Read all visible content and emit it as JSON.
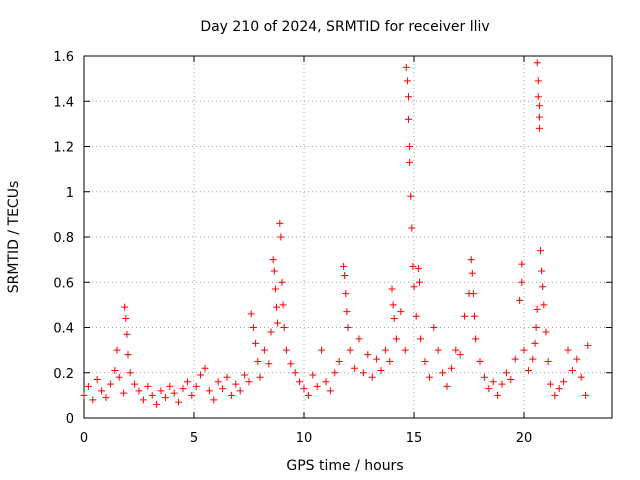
{
  "chart_data": {
    "type": "scatter",
    "title": "Day 210 of 2024, SRMTID for receiver lliv",
    "xlabel": "GPS time / hours",
    "ylabel": "SRMTID / TECUs",
    "xlim": [
      0,
      24
    ],
    "ylim": [
      0,
      1.6
    ],
    "xticks": [
      0,
      5,
      10,
      15,
      20
    ],
    "yticks": [
      0,
      0.2,
      0.4,
      0.6,
      0.8,
      1,
      1.2,
      1.4,
      1.6
    ],
    "xtick_labels": [
      "0",
      "5",
      "10",
      "15",
      "20"
    ],
    "ytick_labels": [
      "0",
      "0.2",
      "0.4",
      "0.6",
      "0.8",
      "1",
      "1.2",
      "1.4",
      "1.6"
    ],
    "grid": true,
    "marker": "+",
    "color": "#ff0000",
    "series": [
      {
        "name": "SRMTID",
        "points": [
          [
            0.0,
            0.1
          ],
          [
            0.2,
            0.14
          ],
          [
            0.4,
            0.08
          ],
          [
            0.6,
            0.17
          ],
          [
            0.8,
            0.12
          ],
          [
            1.0,
            0.09
          ],
          [
            1.2,
            0.15
          ],
          [
            1.4,
            0.21
          ],
          [
            1.5,
            0.3
          ],
          [
            1.6,
            0.18
          ],
          [
            1.8,
            0.11
          ],
          [
            1.85,
            0.49
          ],
          [
            1.9,
            0.44
          ],
          [
            1.95,
            0.37
          ],
          [
            2.0,
            0.28
          ],
          [
            2.1,
            0.2
          ],
          [
            2.3,
            0.15
          ],
          [
            2.5,
            0.12
          ],
          [
            2.7,
            0.08
          ],
          [
            2.9,
            0.14
          ],
          [
            3.1,
            0.1
          ],
          [
            3.3,
            0.06
          ],
          [
            3.5,
            0.12
          ],
          [
            3.7,
            0.09
          ],
          [
            3.9,
            0.14
          ],
          [
            4.1,
            0.11
          ],
          [
            4.3,
            0.07
          ],
          [
            4.5,
            0.13
          ],
          [
            4.7,
            0.16
          ],
          [
            4.9,
            0.1
          ],
          [
            5.1,
            0.14
          ],
          [
            5.3,
            0.19
          ],
          [
            5.5,
            0.22
          ],
          [
            5.7,
            0.12
          ],
          [
            5.9,
            0.08
          ],
          [
            6.1,
            0.16
          ],
          [
            6.3,
            0.13
          ],
          [
            6.5,
            0.18
          ],
          [
            6.7,
            0.1
          ],
          [
            6.9,
            0.15
          ],
          [
            7.1,
            0.12
          ],
          [
            7.3,
            0.19
          ],
          [
            7.5,
            0.16
          ],
          [
            7.6,
            0.46
          ],
          [
            7.7,
            0.4
          ],
          [
            7.8,
            0.33
          ],
          [
            7.9,
            0.25
          ],
          [
            8.0,
            0.18
          ],
          [
            8.2,
            0.3
          ],
          [
            8.4,
            0.24
          ],
          [
            8.5,
            0.38
          ],
          [
            8.6,
            0.7
          ],
          [
            8.65,
            0.65
          ],
          [
            8.7,
            0.57
          ],
          [
            8.75,
            0.49
          ],
          [
            8.8,
            0.42
          ],
          [
            8.9,
            0.86
          ],
          [
            8.95,
            0.8
          ],
          [
            9.0,
            0.6
          ],
          [
            9.05,
            0.5
          ],
          [
            9.1,
            0.4
          ],
          [
            9.2,
            0.3
          ],
          [
            9.4,
            0.24
          ],
          [
            9.6,
            0.2
          ],
          [
            9.8,
            0.16
          ],
          [
            10.0,
            0.13
          ],
          [
            10.2,
            0.1
          ],
          [
            10.4,
            0.19
          ],
          [
            10.6,
            0.14
          ],
          [
            10.8,
            0.3
          ],
          [
            11.0,
            0.16
          ],
          [
            11.2,
            0.12
          ],
          [
            11.4,
            0.2
          ],
          [
            11.6,
            0.25
          ],
          [
            11.8,
            0.67
          ],
          [
            11.85,
            0.63
          ],
          [
            11.9,
            0.55
          ],
          [
            11.95,
            0.47
          ],
          [
            12.0,
            0.4
          ],
          [
            12.1,
            0.3
          ],
          [
            12.3,
            0.22
          ],
          [
            12.5,
            0.35
          ],
          [
            12.7,
            0.2
          ],
          [
            12.9,
            0.28
          ],
          [
            13.1,
            0.18
          ],
          [
            13.3,
            0.26
          ],
          [
            13.5,
            0.21
          ],
          [
            13.7,
            0.3
          ],
          [
            13.9,
            0.25
          ],
          [
            14.0,
            0.57
          ],
          [
            14.05,
            0.5
          ],
          [
            14.1,
            0.44
          ],
          [
            14.2,
            0.35
          ],
          [
            14.4,
            0.47
          ],
          [
            14.6,
            0.3
          ],
          [
            14.65,
            1.55
          ],
          [
            14.7,
            1.49
          ],
          [
            14.75,
            1.42
          ],
          [
            14.75,
            1.32
          ],
          [
            14.8,
            1.2
          ],
          [
            14.8,
            1.13
          ],
          [
            14.85,
            0.98
          ],
          [
            14.9,
            0.84
          ],
          [
            14.95,
            0.67
          ],
          [
            15.0,
            0.58
          ],
          [
            15.1,
            0.45
          ],
          [
            15.2,
            0.66
          ],
          [
            15.25,
            0.6
          ],
          [
            15.3,
            0.35
          ],
          [
            15.5,
            0.25
          ],
          [
            15.7,
            0.18
          ],
          [
            15.9,
            0.4
          ],
          [
            16.1,
            0.3
          ],
          [
            16.3,
            0.2
          ],
          [
            16.5,
            0.14
          ],
          [
            16.7,
            0.22
          ],
          [
            16.9,
            0.3
          ],
          [
            17.1,
            0.28
          ],
          [
            17.3,
            0.45
          ],
          [
            17.5,
            0.55
          ],
          [
            17.6,
            0.7
          ],
          [
            17.65,
            0.64
          ],
          [
            17.7,
            0.55
          ],
          [
            17.75,
            0.45
          ],
          [
            17.8,
            0.35
          ],
          [
            18.0,
            0.25
          ],
          [
            18.2,
            0.18
          ],
          [
            18.4,
            0.13
          ],
          [
            18.6,
            0.16
          ],
          [
            18.8,
            0.1
          ],
          [
            19.0,
            0.15
          ],
          [
            19.2,
            0.2
          ],
          [
            19.4,
            0.17
          ],
          [
            19.6,
            0.26
          ],
          [
            19.8,
            0.52
          ],
          [
            19.9,
            0.6
          ],
          [
            19.9,
            0.68
          ],
          [
            20.0,
            0.3
          ],
          [
            20.2,
            0.21
          ],
          [
            20.4,
            0.26
          ],
          [
            20.5,
            0.33
          ],
          [
            20.55,
            0.4
          ],
          [
            20.6,
            0.48
          ],
          [
            20.6,
            1.57
          ],
          [
            20.65,
            1.49
          ],
          [
            20.65,
            1.42
          ],
          [
            20.7,
            1.38
          ],
          [
            20.7,
            1.33
          ],
          [
            20.7,
            1.28
          ],
          [
            20.75,
            0.74
          ],
          [
            20.8,
            0.65
          ],
          [
            20.85,
            0.58
          ],
          [
            20.9,
            0.5
          ],
          [
            21.0,
            0.38
          ],
          [
            21.1,
            0.25
          ],
          [
            21.2,
            0.15
          ],
          [
            21.4,
            0.1
          ],
          [
            21.6,
            0.13
          ],
          [
            21.8,
            0.16
          ],
          [
            22.0,
            0.3
          ],
          [
            22.2,
            0.21
          ],
          [
            22.4,
            0.26
          ],
          [
            22.6,
            0.18
          ],
          [
            22.8,
            0.1
          ],
          [
            22.9,
            0.32
          ]
        ]
      }
    ]
  }
}
